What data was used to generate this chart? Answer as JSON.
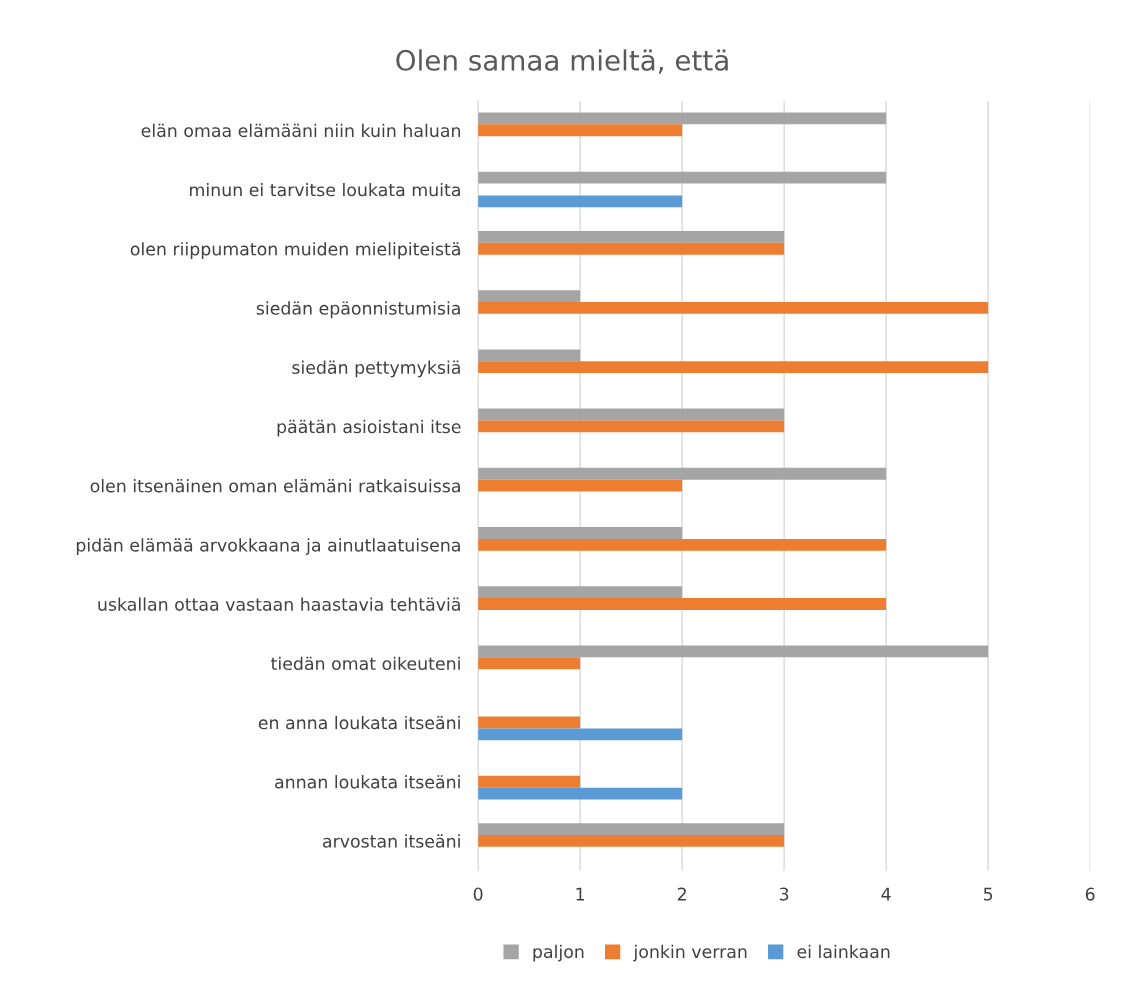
{
  "chart_data": {
    "type": "bar",
    "orientation": "horizontal",
    "title": "Olen samaa mieltä, että",
    "categories": [
      "elän omaa elämääni niin kuin haluan",
      "minun ei tarvitse loukata muita",
      "olen riippumaton muiden mielipiteistä",
      "siedän epäonnistumisia",
      "siedän pettymyksiä",
      "päätän asioistani itse",
      "olen itsenäinen oman elämäni ratkaisuissa",
      "pidän elämää arvokkaana ja ainutlaatuisena",
      "uskallan ottaa vastaan haastavia tehtäviä",
      "tiedän omat oikeuteni",
      "en anna loukata itseäni",
      "annan loukata itseäni",
      "arvostan itseäni"
    ],
    "series": [
      {
        "name": "paljon",
        "color": "#a5a5a5",
        "values": [
          4,
          4,
          3,
          1,
          1,
          3,
          4,
          2,
          2,
          5,
          null,
          null,
          3
        ]
      },
      {
        "name": "jonkin verran",
        "color": "#ed7d31",
        "values": [
          2,
          null,
          3,
          5,
          5,
          3,
          2,
          4,
          4,
          1,
          1,
          1,
          3
        ]
      },
      {
        "name": "ei lainkaan",
        "color": "#5b9bd5",
        "values": [
          null,
          2,
          null,
          null,
          null,
          null,
          null,
          null,
          null,
          null,
          2,
          2,
          null
        ]
      }
    ],
    "xlim": [
      0,
      6
    ],
    "xticks": [
      0,
      1,
      2,
      3,
      4,
      5,
      6
    ],
    "grid": "x",
    "legend": "bottom"
  }
}
